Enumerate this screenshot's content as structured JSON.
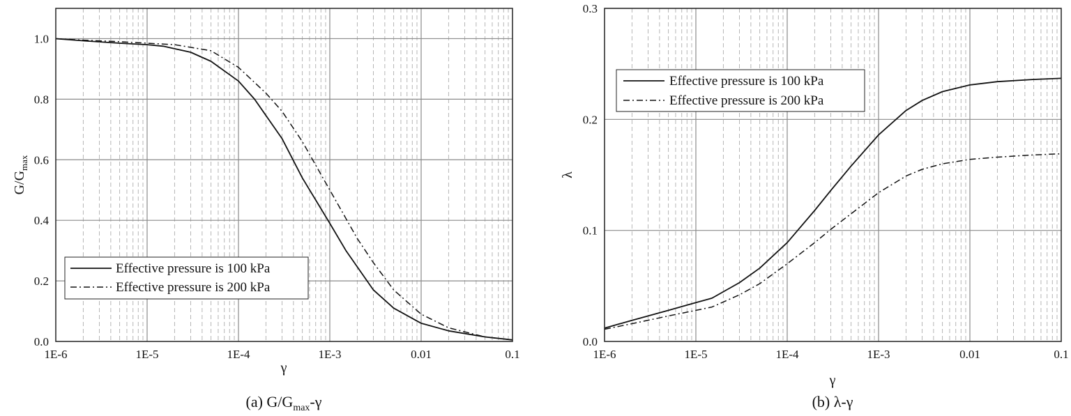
{
  "chart_data": [
    {
      "type": "line",
      "x_scale": "log",
      "xlim": [
        1e-06,
        0.1
      ],
      "ylim": [
        0,
        1.1
      ],
      "x_ticks": [
        "1E-6",
        "1E-5",
        "1E-4",
        "1E-3",
        "0.01",
        "0.1"
      ],
      "y_ticks": [
        "0.0",
        "0.2",
        "0.4",
        "0.6",
        "0.8",
        "1.0"
      ],
      "xlabel": "γ",
      "ylabel": {
        "main": "G/G",
        "sub": "max"
      },
      "caption": {
        "prefix": "(a)  G/G",
        "sub": "max",
        "suffix": "-γ"
      },
      "grid": true,
      "legend_position": "lower-left",
      "series": [
        {
          "name": "Effective pressure is 100 kPa",
          "style": "solid",
          "x": [
            1e-06,
            2e-06,
            5e-06,
            1e-05,
            1.5e-05,
            3e-05,
            5e-05,
            0.0001,
            0.00015,
            0.0003,
            0.0005,
            0.001,
            0.0015,
            0.003,
            0.005,
            0.01,
            0.02,
            0.05,
            0.1
          ],
          "values": [
            1.0,
            0.993,
            0.985,
            0.98,
            0.975,
            0.955,
            0.925,
            0.86,
            0.8,
            0.67,
            0.54,
            0.39,
            0.3,
            0.17,
            0.11,
            0.06,
            0.035,
            0.015,
            0.005
          ]
        },
        {
          "name": "Effective pressure is 200 kPa",
          "style": "dashdot",
          "x": [
            1e-06,
            2e-06,
            5e-06,
            1e-05,
            2e-05,
            5e-05,
            0.0001,
            0.0002,
            0.0003,
            0.0005,
            0.001,
            0.002,
            0.003,
            0.005,
            0.01,
            0.02,
            0.05,
            0.1
          ],
          "values": [
            1.0,
            0.995,
            0.99,
            0.985,
            0.98,
            0.96,
            0.905,
            0.82,
            0.76,
            0.66,
            0.5,
            0.34,
            0.26,
            0.17,
            0.09,
            0.045,
            0.015,
            0.005
          ]
        }
      ]
    },
    {
      "type": "line",
      "x_scale": "log",
      "xlim": [
        1e-06,
        0.1
      ],
      "ylim": [
        0,
        0.3
      ],
      "x_ticks": [
        "1E-6",
        "1E-5",
        "1E-4",
        "1E-3",
        "0.01",
        "0.1"
      ],
      "y_ticks": [
        "0.0",
        "0.1",
        "0.2",
        "0.3"
      ],
      "xlabel": "γ",
      "ylabel": "λ",
      "caption": "(b)  λ-γ",
      "grid": true,
      "legend_position": "upper-left",
      "series": [
        {
          "name": "Effective pressure is 100 kPa",
          "style": "solid",
          "x": [
            1e-06,
            2e-06,
            5e-06,
            1e-05,
            1.5e-05,
            3e-05,
            5e-05,
            0.0001,
            0.0002,
            0.0003,
            0.0005,
            0.001,
            0.002,
            0.003,
            0.005,
            0.01,
            0.02,
            0.05,
            0.1
          ],
          "values": [
            0.012,
            0.019,
            0.028,
            0.035,
            0.039,
            0.053,
            0.066,
            0.089,
            0.118,
            0.136,
            0.158,
            0.186,
            0.208,
            0.217,
            0.225,
            0.231,
            0.234,
            0.236,
            0.237
          ]
        },
        {
          "name": "Effective pressure is 200 kPa",
          "style": "dashdot",
          "x": [
            1e-06,
            2e-06,
            5e-06,
            1e-05,
            1.5e-05,
            3e-05,
            5e-05,
            0.0001,
            0.0002,
            0.0003,
            0.0005,
            0.001,
            0.002,
            0.003,
            0.005,
            0.01,
            0.02,
            0.05,
            0.1
          ],
          "values": [
            0.011,
            0.016,
            0.023,
            0.028,
            0.031,
            0.042,
            0.052,
            0.07,
            0.089,
            0.101,
            0.115,
            0.134,
            0.149,
            0.155,
            0.16,
            0.164,
            0.166,
            0.168,
            0.169
          ]
        }
      ]
    }
  ]
}
